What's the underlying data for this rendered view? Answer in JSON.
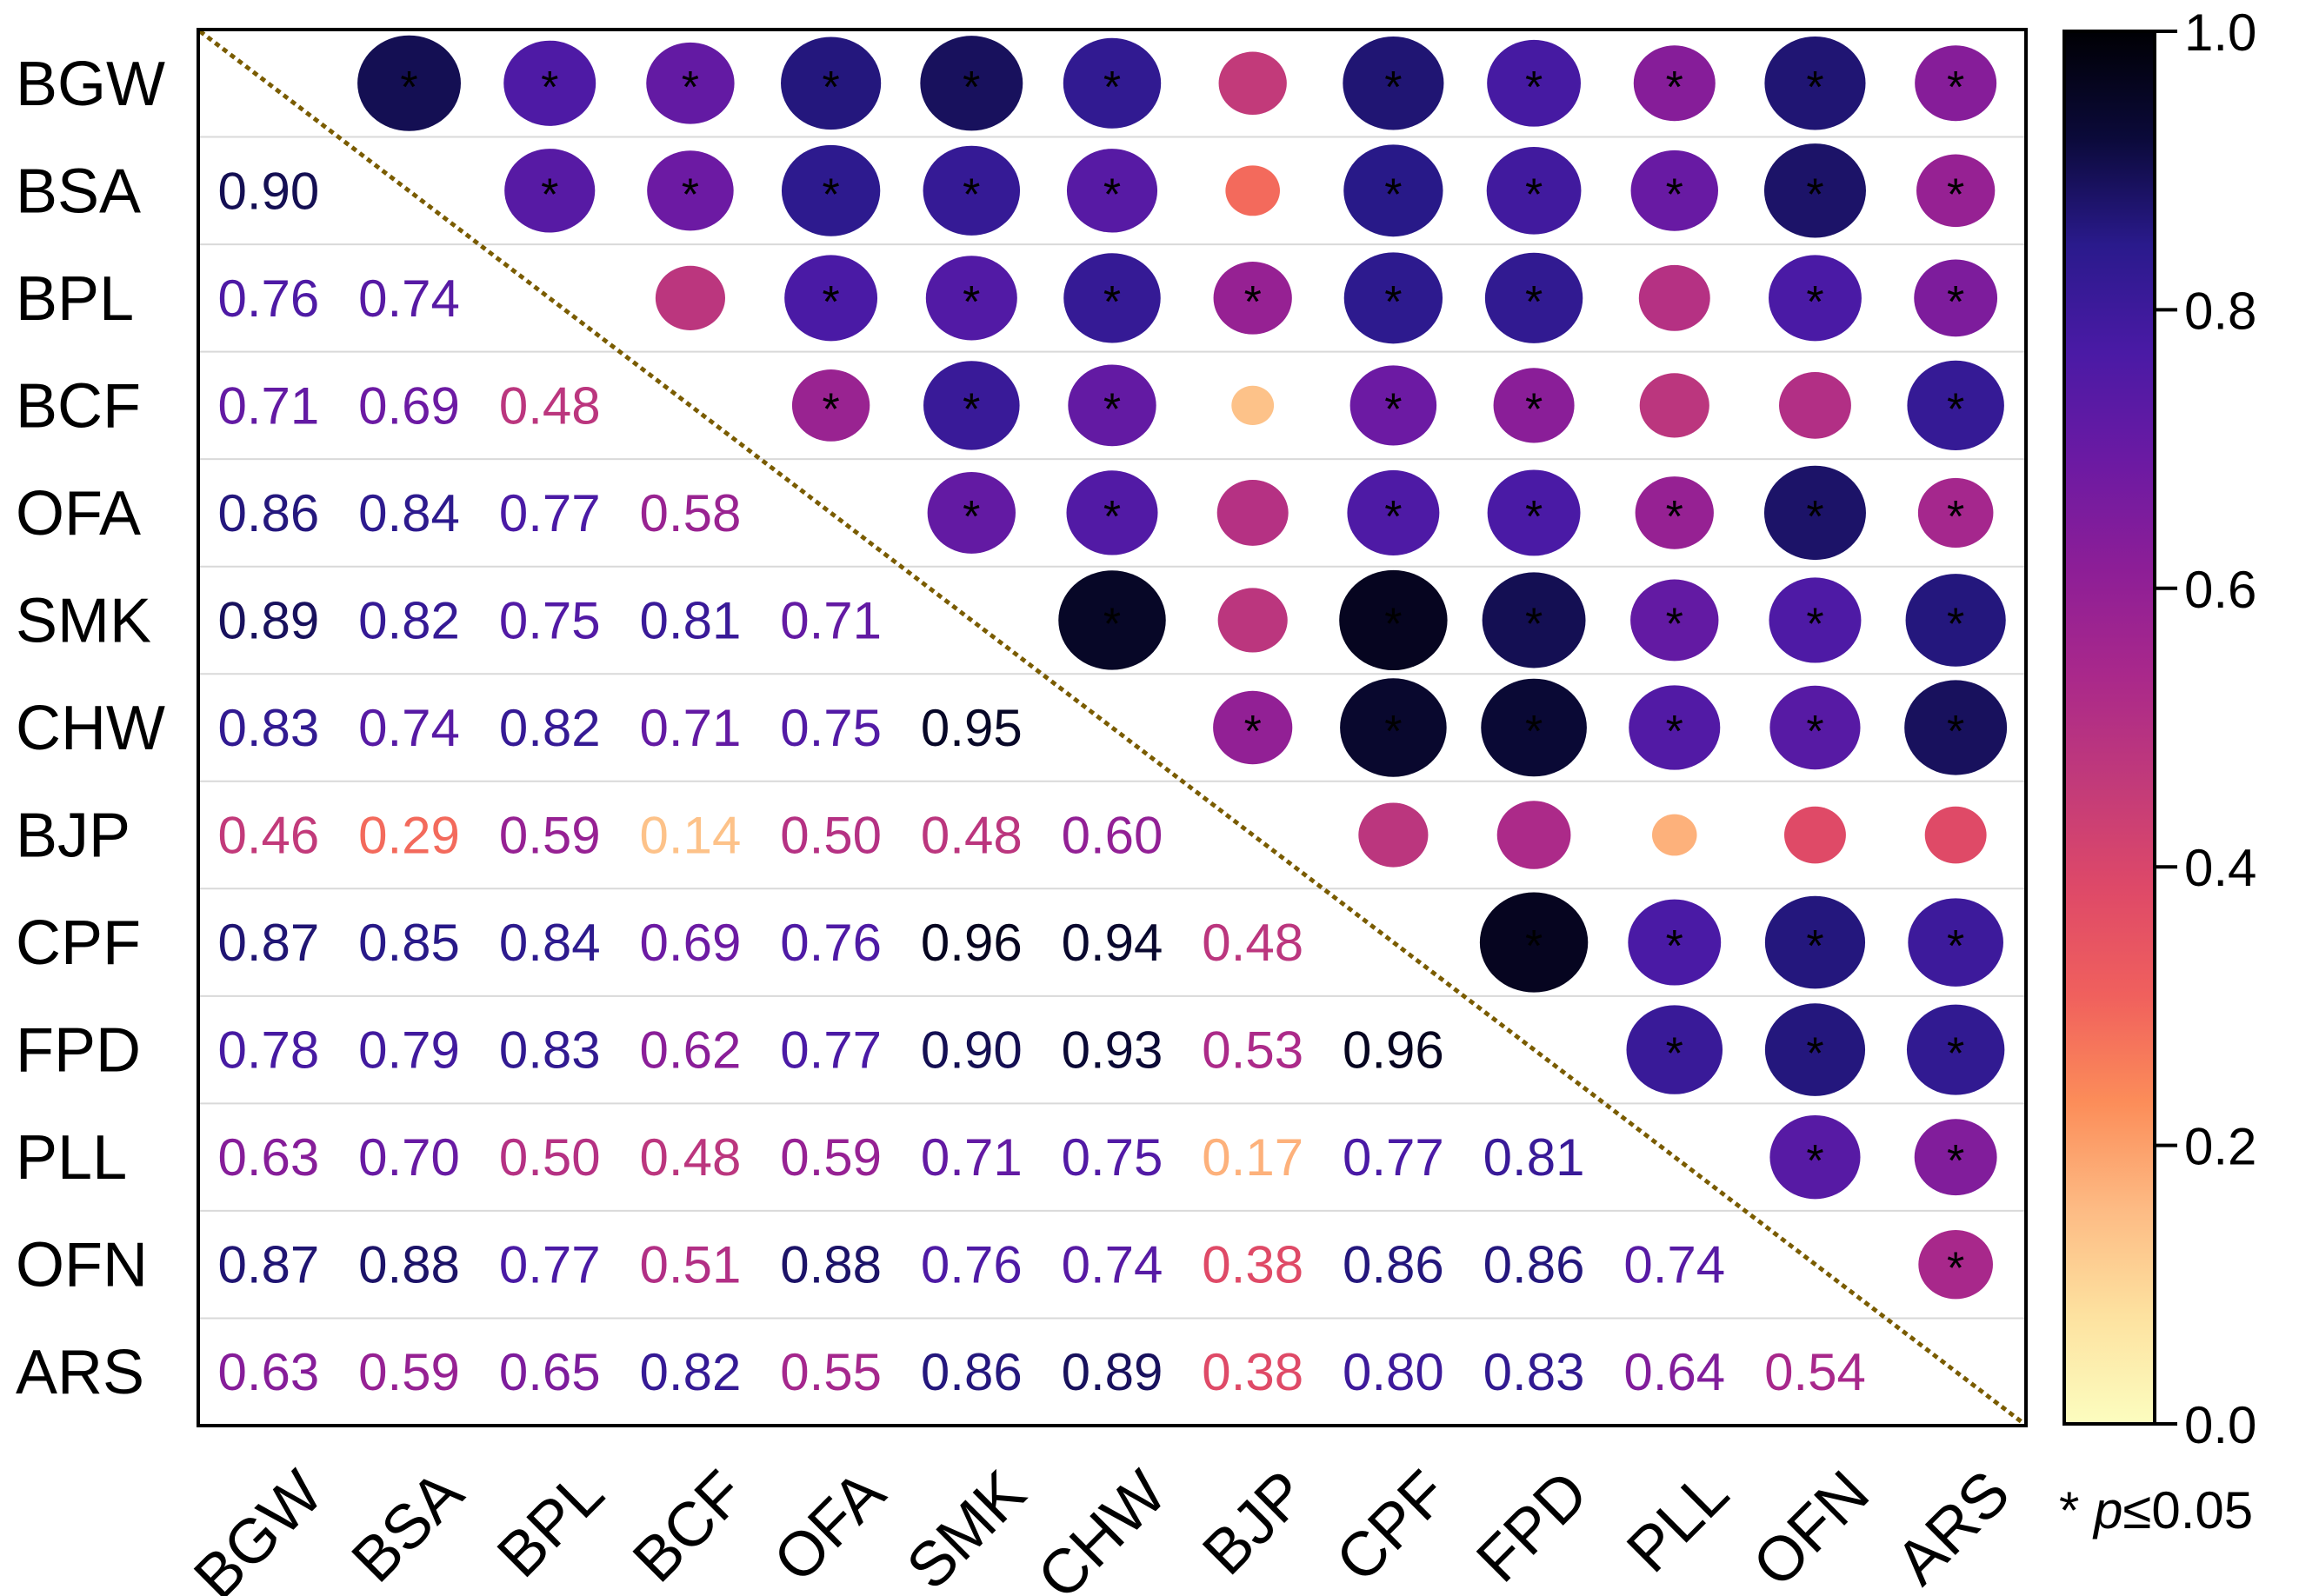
{
  "chart_data": {
    "type": "heatmap",
    "variables": [
      "BGW",
      "BSA",
      "BPL",
      "BCF",
      "OFA",
      "SMK",
      "CHW",
      "BJP",
      "CPF",
      "FPD",
      "PLL",
      "OFN",
      "ARS"
    ],
    "lower_triangle_values": [
      [],
      [
        0.9
      ],
      [
        0.76,
        0.74
      ],
      [
        0.71,
        0.69,
        0.48
      ],
      [
        0.86,
        0.84,
        0.77,
        0.58
      ],
      [
        0.89,
        0.82,
        0.75,
        0.81,
        0.71
      ],
      [
        0.83,
        0.74,
        0.82,
        0.71,
        0.75,
        0.95
      ],
      [
        0.46,
        0.29,
        0.59,
        0.14,
        0.5,
        0.48,
        0.6
      ],
      [
        0.87,
        0.85,
        0.84,
        0.69,
        0.76,
        0.96,
        0.94,
        0.48
      ],
      [
        0.78,
        0.79,
        0.83,
        0.62,
        0.77,
        0.9,
        0.93,
        0.53,
        0.96
      ],
      [
        0.63,
        0.7,
        0.5,
        0.48,
        0.59,
        0.71,
        0.75,
        0.17,
        0.77,
        0.81
      ],
      [
        0.87,
        0.88,
        0.77,
        0.51,
        0.88,
        0.76,
        0.74,
        0.38,
        0.86,
        0.86,
        0.74
      ],
      [
        0.63,
        0.59,
        0.65,
        0.82,
        0.55,
        0.86,
        0.89,
        0.38,
        0.8,
        0.83,
        0.64,
        0.54
      ]
    ],
    "upper_significant": [
      [
        0,
        1,
        1,
        1,
        1,
        1,
        1,
        0,
        1,
        1,
        1,
        1,
        1
      ],
      [
        0,
        0,
        1,
        1,
        1,
        1,
        1,
        0,
        1,
        1,
        1,
        1,
        1
      ],
      [
        0,
        0,
        0,
        0,
        1,
        1,
        1,
        1,
        1,
        1,
        0,
        1,
        1
      ],
      [
        0,
        0,
        0,
        0,
        1,
        1,
        1,
        0,
        1,
        1,
        0,
        0,
        1
      ],
      [
        0,
        0,
        0,
        0,
        0,
        1,
        1,
        0,
        1,
        1,
        1,
        1,
        1
      ],
      [
        0,
        0,
        0,
        0,
        0,
        0,
        1,
        0,
        1,
        1,
        1,
        1,
        1
      ],
      [
        0,
        0,
        0,
        0,
        0,
        0,
        0,
        1,
        1,
        1,
        1,
        1,
        1
      ],
      [
        0,
        0,
        0,
        0,
        0,
        0,
        0,
        0,
        0,
        0,
        0,
        0,
        0
      ],
      [
        0,
        0,
        0,
        0,
        0,
        0,
        0,
        0,
        0,
        1,
        1,
        1,
        1
      ],
      [
        0,
        0,
        0,
        0,
        0,
        0,
        0,
        0,
        0,
        0,
        1,
        1,
        1
      ],
      [
        0,
        0,
        0,
        0,
        0,
        0,
        0,
        0,
        0,
        0,
        0,
        1,
        1
      ],
      [
        0,
        0,
        0,
        0,
        0,
        0,
        0,
        0,
        0,
        0,
        0,
        0,
        1
      ],
      [
        0,
        0,
        0,
        0,
        0,
        0,
        0,
        0,
        0,
        0,
        0,
        0,
        0
      ]
    ],
    "colorbar": {
      "range": [
        0.0,
        1.0
      ],
      "ticks": [
        0.0,
        0.2,
        0.4,
        0.6,
        0.8,
        1.0
      ],
      "tick_labels": [
        "0.0",
        "0.2",
        "0.4",
        "0.6",
        "0.8",
        "1.0"
      ],
      "colormap": "magma_r",
      "stops": [
        "#fcfdbf",
        "#fde2a0",
        "#fdbb84",
        "#fc8d59",
        "#f0605d",
        "#de4968",
        "#c13a7a",
        "#a9288b",
        "#8c1e97",
        "#6b1aa3",
        "#4a1aa5",
        "#2a1a8c",
        "#0b0a3a",
        "#000004"
      ]
    },
    "significance_marker": "*",
    "note": {
      "prefix": "* ",
      "p_symbol": "p",
      "suffix": "≤0.05"
    },
    "diagonal_line_color": "#7a5c00"
  }
}
